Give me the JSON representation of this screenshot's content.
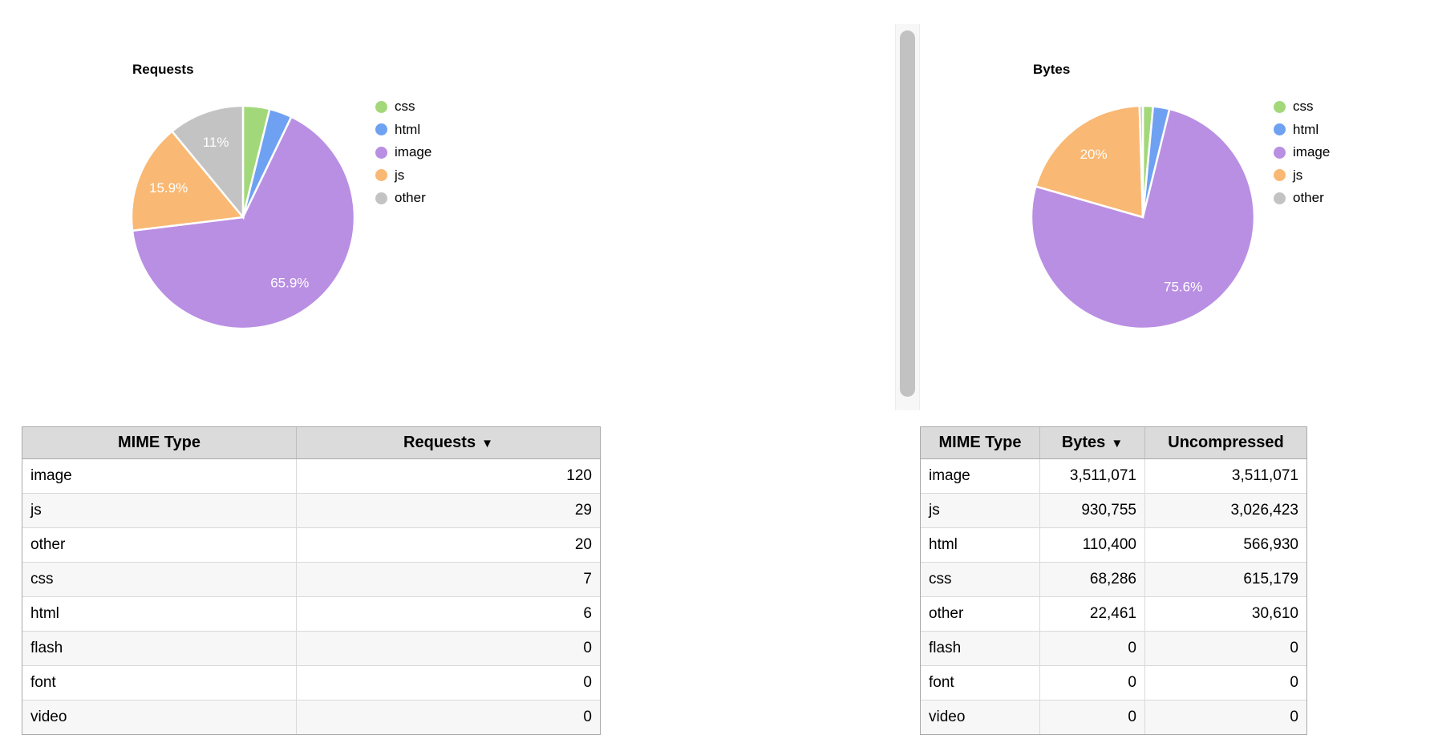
{
  "chart_data": [
    {
      "type": "pie",
      "title": "Requests",
      "categories": [
        "css",
        "html",
        "image",
        "js",
        "other"
      ],
      "values": [
        7,
        6,
        120,
        29,
        20
      ],
      "percent_labels": {
        "image": "65.9%",
        "js": "15.9%",
        "other": "11%"
      },
      "colors": {
        "css": "#a3d87a",
        "html": "#6fa1f2",
        "image": "#b98fe3",
        "js": "#f9b873",
        "other": "#c3c3c3"
      },
      "label_color": "#ffffff",
      "start_angle": "12-oclock",
      "direction": "clockwise",
      "legend_position": "right"
    },
    {
      "type": "pie",
      "title": "Bytes",
      "categories": [
        "css",
        "html",
        "image",
        "js",
        "other"
      ],
      "values": [
        68286,
        110400,
        3511071,
        930755,
        22461
      ],
      "percent_labels": {
        "image": "75.6%",
        "js": "20%"
      },
      "colors": {
        "css": "#a3d87a",
        "html": "#6fa1f2",
        "image": "#b98fe3",
        "js": "#f9b873",
        "other": "#c3c3c3"
      },
      "label_color": "#ffffff",
      "start_angle": "12-oclock",
      "direction": "clockwise",
      "legend_position": "right"
    }
  ],
  "panels": [
    {
      "title": "Requests",
      "table": {
        "headers": [
          {
            "label": "MIME Type",
            "sorted": false
          },
          {
            "label": "Requests",
            "sorted": true
          }
        ],
        "sort_icon": "▼",
        "rows": [
          [
            "image",
            "120"
          ],
          [
            "js",
            "29"
          ],
          [
            "other",
            "20"
          ],
          [
            "css",
            "7"
          ],
          [
            "html",
            "6"
          ],
          [
            "flash",
            "0"
          ],
          [
            "font",
            "0"
          ],
          [
            "video",
            "0"
          ]
        ]
      }
    },
    {
      "title": "Bytes",
      "table": {
        "headers": [
          {
            "label": "MIME Type",
            "sorted": false
          },
          {
            "label": "Bytes",
            "sorted": true
          },
          {
            "label": "Uncompressed",
            "sorted": false
          }
        ],
        "sort_icon": "▼",
        "rows": [
          [
            "image",
            "3,511,071",
            "3,511,071"
          ],
          [
            "js",
            "930,755",
            "3,026,423"
          ],
          [
            "html",
            "110,400",
            "566,930"
          ],
          [
            "css",
            "68,286",
            "615,179"
          ],
          [
            "other",
            "22,461",
            "30,610"
          ],
          [
            "flash",
            "0",
            "0"
          ],
          [
            "font",
            "0",
            "0"
          ],
          [
            "video",
            "0",
            "0"
          ]
        ]
      }
    }
  ]
}
